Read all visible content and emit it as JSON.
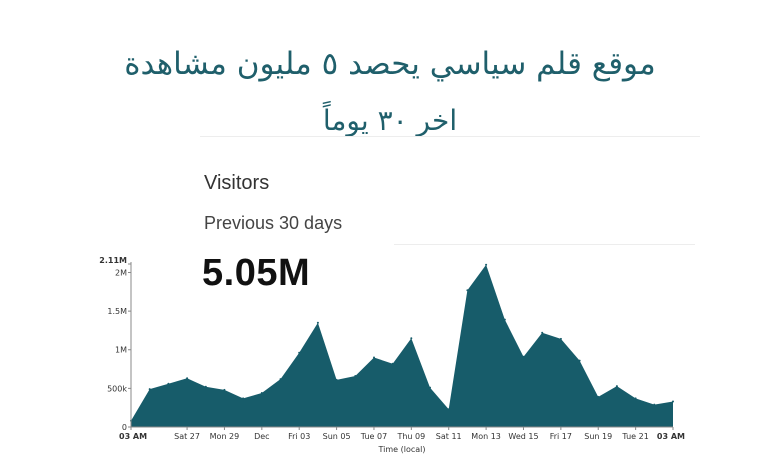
{
  "headline": {
    "line1": "موقع قلم سياسي يحصد ٥ مليون مشاهدة",
    "line2": "اخر ٣٠ يوماً"
  },
  "stat": {
    "title": "Visitors",
    "period": "Previous 30 days",
    "value": "5.05M"
  },
  "colors": {
    "area": "#175c6a",
    "headline": "#1f5f6b"
  },
  "chart_data": {
    "type": "area",
    "title": "",
    "xlabel": "Time (local)",
    "ylabel": "",
    "ylim": [
      0,
      2110000
    ],
    "y_ticks": [
      0,
      500000,
      1000000,
      1500000,
      2000000,
      2110000
    ],
    "y_tick_labels": [
      "0",
      "500k",
      "1M",
      "1.5M",
      "2M",
      "2.11M"
    ],
    "x_tick_labels": [
      {
        "label": "03 AM",
        "index": 0
      },
      {
        "label": "Sat 27",
        "index": 3
      },
      {
        "label": "Mon 29",
        "index": 5
      },
      {
        "label": "Dec",
        "index": 7
      },
      {
        "label": "Fri 03",
        "index": 9
      },
      {
        "label": "Sun 05",
        "index": 11
      },
      {
        "label": "Tue 07",
        "index": 13
      },
      {
        "label": "Thu 09",
        "index": 15
      },
      {
        "label": "Sat 11",
        "index": 17
      },
      {
        "label": "Mon 13",
        "index": 19
      },
      {
        "label": "Wed 15",
        "index": 21
      },
      {
        "label": "Fri 17",
        "index": 23
      },
      {
        "label": "Sun 19",
        "index": 25
      },
      {
        "label": "Tue 21",
        "index": 27
      },
      {
        "label": "03 AM",
        "index": 29
      }
    ],
    "grid": false,
    "series": [
      {
        "values": [
          80000,
          490000,
          560000,
          630000,
          520000,
          480000,
          370000,
          440000,
          620000,
          960000,
          1350000,
          610000,
          660000,
          900000,
          820000,
          1150000,
          510000,
          230000,
          1770000,
          2100000,
          1390000,
          910000,
          1220000,
          1140000,
          860000,
          390000,
          530000,
          370000,
          290000,
          330000
        ]
      }
    ]
  }
}
